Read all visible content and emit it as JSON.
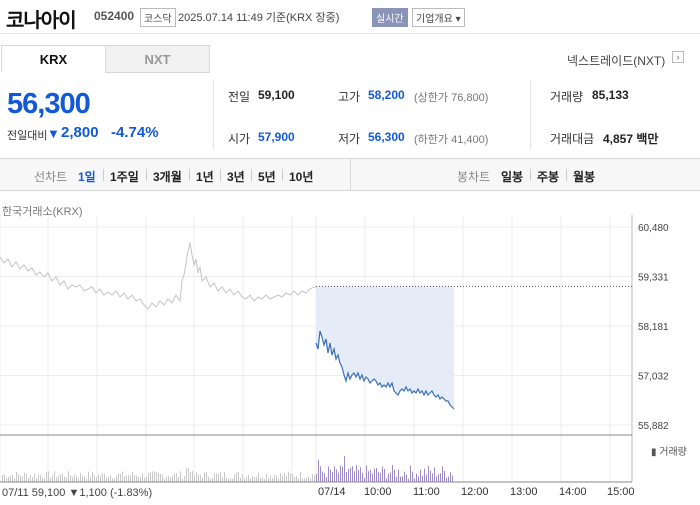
{
  "header": {
    "stock_name": "코나아이",
    "stock_code": "052400",
    "market_badge": "코스닥",
    "datetime": "2025.07.14 11:49 기준(KRX 장중)",
    "realtime_badge": "실시간",
    "company_info_btn": "기업개요 ▾"
  },
  "exchange_tabs": [
    "KRX",
    "NXT"
  ],
  "nxt_link": "넥스트레이드(NXT)",
  "price": {
    "current": "56,300",
    "prev_label": "전일대비",
    "change_arrow": "▼",
    "change": "2,800",
    "change_pct": "-4.74%"
  },
  "stats": {
    "prev_close_label": "전일",
    "prev_close": "59,100",
    "open_label": "시가",
    "open": "57,900",
    "high_label": "고가",
    "high": "58,200",
    "upper_limit": "(상한가 76,800)",
    "low_label": "저가",
    "low": "56,300",
    "lower_limit": "(하한가 41,400)",
    "volume_label": "거래량",
    "volume": "85,133",
    "amount_label": "거래대금",
    "amount": "4,857 백만"
  },
  "periods": {
    "line_chart_label": "선차트",
    "items": [
      "1일",
      "1주일",
      "3개월",
      "1년",
      "3년",
      "5년",
      "10년"
    ],
    "candle_label": "봉차트",
    "candle_items": [
      "일봉",
      "주봉",
      "월봉"
    ]
  },
  "chart": {
    "exchange_label": "한국거래소(KRX)",
    "y_ticks": [
      "60,480",
      "59,331",
      "58,181",
      "57,032",
      "55,882"
    ],
    "x_ticks": [
      "07/11",
      "07/14",
      "10:00",
      "11:00",
      "12:00",
      "13:00",
      "14:00",
      "15:00"
    ],
    "volume_legend": "거래량",
    "prev_close_line": 59100,
    "colors": {
      "today_line": "#3a6fb8",
      "prev_line": "#c4c4c4",
      "fill": "#e5ebf7",
      "volume_prev": "#c8c8c8",
      "volume_today": "#9b8bc8"
    }
  },
  "footer": {
    "prev_day_stat": "07/11 59,100 ▼1,100 (-1.83%)"
  }
}
